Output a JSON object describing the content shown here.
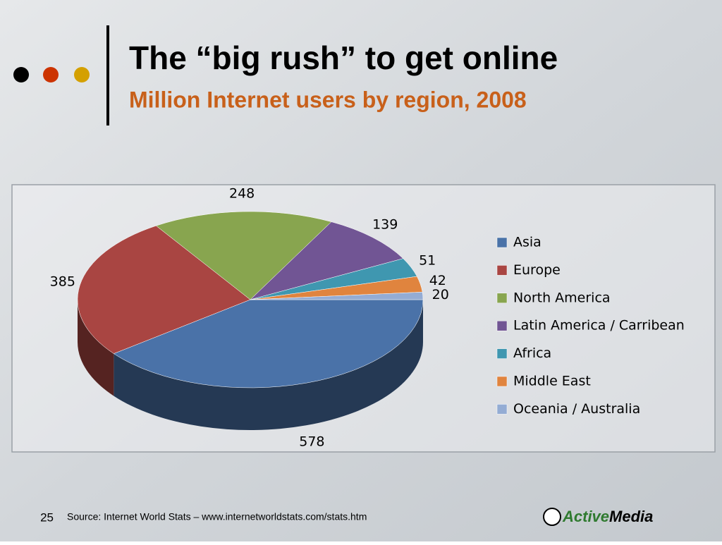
{
  "header": {
    "title": "The “big rush” to get online",
    "subtitle": "Million Internet users by region, 2008"
  },
  "chart_data": {
    "type": "pie",
    "style": "3d",
    "categories": [
      "Asia",
      "Europe",
      "North America",
      "Latin America / Carribean",
      "Africa",
      "Middle East",
      "Oceania / Australia"
    ],
    "values": [
      578,
      385,
      248,
      139,
      51,
      42,
      20
    ],
    "colors": [
      "#4a72a8",
      "#a94542",
      "#88a54f",
      "#715594",
      "#3f97b0",
      "#e0843e",
      "#94acd4"
    ],
    "legend": "right"
  },
  "footer": {
    "page": "25",
    "source": "Source: Internet World Stats – www.internetworldstats.com/stats.htm",
    "logo": [
      "Active",
      "Media"
    ]
  }
}
